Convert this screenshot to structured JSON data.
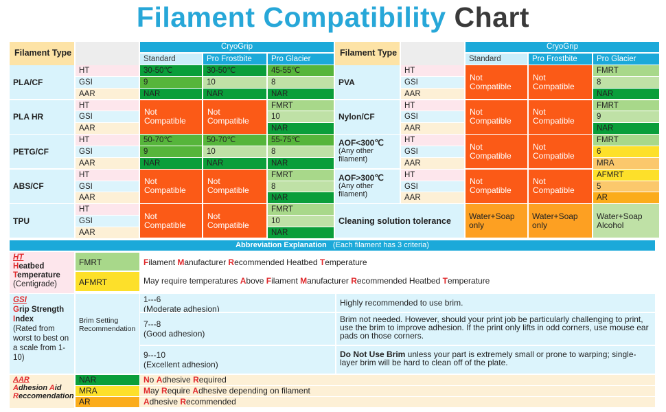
{
  "title": {
    "part1": "Filament Compatibility",
    "part2": "Chart"
  },
  "headers": {
    "filament_type": "Filament Type",
    "brand": "CryoGrip",
    "standard": "Standard",
    "pro_frostbite": "Pro Frostbite",
    "pro_glacier": "Pro Glacier"
  },
  "criteria": {
    "ht": "HT",
    "gsi": "GSI",
    "aar": "AAR"
  },
  "left": {
    "pla_cf": {
      "name": "PLA/CF",
      "std": [
        "30-50℃",
        "9",
        "NAR"
      ],
      "frost": [
        "30-50℃",
        "10",
        "NAR"
      ],
      "glac": [
        "45-55℃",
        "8",
        "NAR"
      ]
    },
    "pla_hr": {
      "name": "PLA HR",
      "std": "Not Compatible",
      "frost": "Not Compatible",
      "glac": [
        "FMRT",
        "10",
        "NAR"
      ]
    },
    "petg_cf": {
      "name": "PETG/CF",
      "std": [
        "50-70℃",
        "9",
        "NAR"
      ],
      "frost": [
        "50-70℃",
        "10",
        "NAR"
      ],
      "glac": [
        "55-75℃",
        "8",
        "NAR"
      ]
    },
    "abs_cf": {
      "name": "ABS/CF",
      "std": "Not Compatible",
      "frost": "Not Compatible",
      "glac": [
        "FMRT",
        "8",
        "NAR"
      ]
    },
    "tpu": {
      "name": "TPU",
      "std": "Not Compatible",
      "frost": "Not Compatible",
      "glac": [
        "FMRT",
        "10",
        "NAR"
      ]
    }
  },
  "right": {
    "pva": {
      "name": "PVA",
      "std": "Not Compatible",
      "frost": "Not Compatible",
      "glac": [
        "FMRT",
        "8",
        "NAR"
      ]
    },
    "nylon_cf": {
      "name": "Nylon/CF",
      "std": "Not Compatible",
      "frost": "Not Compatible",
      "glac": [
        "FMRT",
        "9",
        "NAR"
      ]
    },
    "aof_low": {
      "name1": "AOF<300℃",
      "name2": "(Any other filament)",
      "std": "Not Compatible",
      "frost": "Not Compatible",
      "glac": [
        "FMRT",
        "6",
        "MRA"
      ]
    },
    "aof_high": {
      "name1": "AOF>300℃",
      "name2": "(Any other filament)",
      "std": "Not Compatible",
      "frost": "Not Compatible",
      "glac": [
        "AFMRT",
        "5",
        "AR"
      ]
    },
    "cleaning": {
      "label": "Cleaning solution tolerance",
      "std": "Water+Soap only",
      "frost": "Water+Soap only",
      "glac": "Water+Soap Alcohol"
    }
  },
  "abbr": {
    "header": "Abbreviation Explanation",
    "header_note": "(Each filament has 3 criteria)",
    "ht": {
      "code": "HT",
      "l1": "eatbed",
      "l2": "emperature",
      "l3": "(Centigrade)",
      "fmrt": "FMRT",
      "afmrt": "AFMRT",
      "fmrt_desc": [
        "ilament ",
        "anufacturer ",
        "ecommended Heatbed ",
        "emperature"
      ],
      "afmrt_desc": [
        "May require temperatures ",
        "bove ",
        "ilament ",
        "anufacturer ",
        "ecommended Heatbed ",
        "emperature"
      ]
    },
    "gsi": {
      "code": "GSI",
      "l1": "rip Strength",
      "l2": "ndex",
      "l3": "(Rated from worst to best on a scale from 1-10)",
      "brim_setting": "Brim Setting Recommendation",
      "r1_range": "1---6",
      "r1_note": "(Moderate adhesion)",
      "r1_desc": "Highly recommended to use brim.",
      "r2_range": "7---8",
      "r2_note": "(Good adhesion)",
      "r2_desc": "Brim not needed. However, should your print job be particularly challenging to print, use the brim to improve adhesion. If the print only lifts in odd corners, use mouse ear pads on those corners.",
      "r3_range": "9---10",
      "r3_note": "(Excellent adhesion)",
      "r3_bold": "Do Not Use Brim",
      "r3_desc": " unless your part is extremely small or prone to warping; single-layer brim will be hard to clean off of the plate."
    },
    "aar": {
      "code": "AAR",
      "l1": "dhesion ",
      "l1b": "id",
      "l2": "eccomendation",
      "nar": "NAR",
      "mra": "MRA",
      "ar": "AR",
      "nar_desc": [
        "o ",
        "dhesive ",
        "equired"
      ],
      "mra_desc": [
        "ay ",
        "equire ",
        "dhesive depending on filament"
      ],
      "ar_desc": [
        "dhesive ",
        "ecommended"
      ]
    }
  },
  "colors": {
    "accent_blue": "#1ba9d9",
    "not_compatible": "#fb5a17",
    "dark_green": "#0a9e3a",
    "title_dark": "#3a3a3a"
  }
}
